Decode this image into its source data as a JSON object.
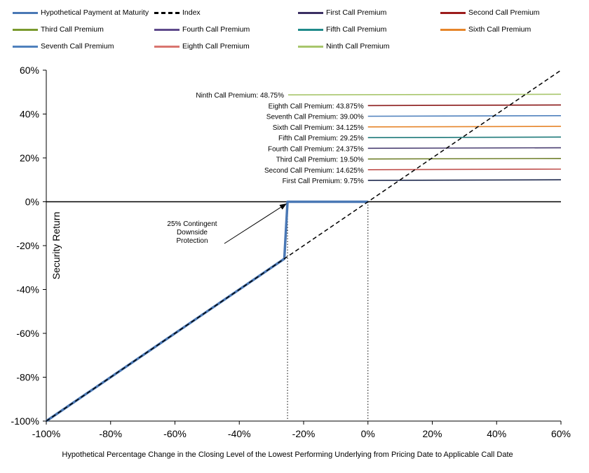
{
  "chart_data": {
    "type": "line",
    "xlabel": "Hypothetical  Percentage  Change  in the  Closing  Level  of  the  Lowest  Performing  Underlying  from  Pricing  Date  to  Applicable  Call  Date",
    "ylabel": "Security Return",
    "xlim": [
      -100,
      60
    ],
    "ylim": [
      -100,
      60
    ],
    "x_ticks": [
      "-100%",
      "-80%",
      "-60%",
      "-40%",
      "-20%",
      "0%",
      "20%",
      "40%",
      "60%"
    ],
    "y_ticks": [
      "60%",
      "40%",
      "20%",
      "0%",
      "-20%",
      "-40%",
      "-60%",
      "-80%",
      "-100%"
    ],
    "legend": [
      {
        "name": "Hypothetical Payment at Maturity",
        "color": "#4a78b5",
        "style": "solid"
      },
      {
        "name": "Index",
        "color": "#000000",
        "style": "dashed"
      },
      {
        "name": "First Call Premium",
        "color": "#3b2f63"
      },
      {
        "name": "Second Call Premium",
        "color": "#9c1c1c"
      },
      {
        "name": "Third Call Premium",
        "color": "#7a9a2e"
      },
      {
        "name": "Fourth Call Premium",
        "color": "#5f4a8b"
      },
      {
        "name": "Fifth Call Premium",
        "color": "#1f8a8a"
      },
      {
        "name": "Sixth Call Premium",
        "color": "#e6852a"
      },
      {
        "name": "Seventh Call Premium",
        "color": "#4f81bd"
      },
      {
        "name": "Eighth Call Premium",
        "color": "#d9756f"
      },
      {
        "name": "Ninth Call Premium",
        "color": "#a8c66c"
      }
    ],
    "series": [
      {
        "name": "Hypothetical Payment at Maturity",
        "color": "#4a78b5",
        "points": [
          [
            -100,
            -100
          ],
          [
            -26,
            -26
          ],
          [
            -25,
            0
          ],
          [
            0,
            0
          ]
        ]
      },
      {
        "name": "Index",
        "color": "#000000",
        "points": [
          [
            -100,
            -100
          ],
          [
            60,
            60
          ]
        ]
      }
    ],
    "call_premiums": [
      {
        "label": "Ninth Call Premium: 48.75%",
        "value": 48.75,
        "color": "#a8c66c",
        "x_start": -24.8
      },
      {
        "label": "Eighth Call Premium: 43.875%",
        "value": 43.875,
        "color": "#8b1a1a",
        "x_start": 0
      },
      {
        "label": "Seventh Call Premium: 39.00%",
        "value": 39.0,
        "color": "#4f81bd",
        "x_start": 0
      },
      {
        "label": "Sixth Call Premium: 34.125%",
        "value": 34.125,
        "color": "#e6852a",
        "x_start": 0
      },
      {
        "label": "Fifth Call Premium: 29.25%",
        "value": 29.25,
        "color": "#1f7a7a",
        "x_start": 0
      },
      {
        "label": "Fourth Call Premium: 24.375%",
        "value": 24.375,
        "color": "#4b3f72",
        "x_start": 0
      },
      {
        "label": "Third Call Premium: 19.50%",
        "value": 19.5,
        "color": "#6f7f2a",
        "x_start": 0
      },
      {
        "label": "Second Call Premium: 14.625%",
        "value": 14.625,
        "color": "#c0504d",
        "x_start": 0
      },
      {
        "label": "First Call Premium: 9.75%",
        "value": 9.75,
        "color": "#1f2a4f",
        "x_start": 0
      }
    ],
    "reference_lines_x": [
      -25,
      0
    ],
    "annotation": {
      "lines": [
        "25% Contingent",
        "Downside",
        "Protection"
      ],
      "arrow_to": [
        -25,
        0
      ]
    }
  }
}
